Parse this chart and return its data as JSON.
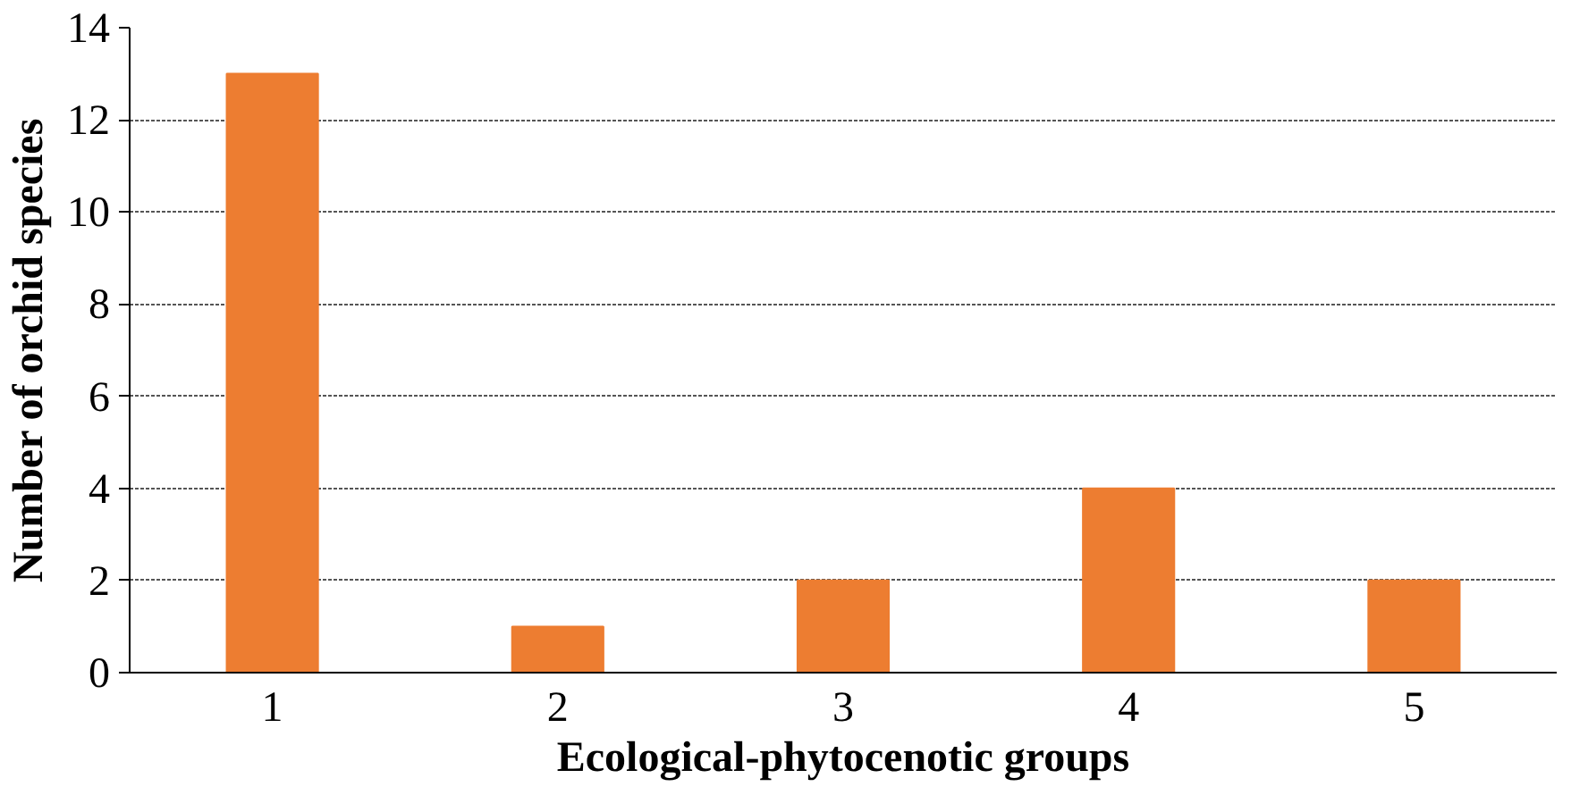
{
  "chart_data": {
    "type": "bar",
    "xlabel": "Ecological-phytocenotic groups",
    "ylabel": "Number of orchid species",
    "categories": [
      "1",
      "2",
      "3",
      "4",
      "5"
    ],
    "values": [
      13,
      1,
      2,
      4,
      2
    ],
    "color": "#ed7d31",
    "ylim": [
      0,
      14
    ],
    "yticks": [
      0,
      2,
      4,
      6,
      8,
      10,
      12,
      14
    ],
    "grid": "y"
  }
}
